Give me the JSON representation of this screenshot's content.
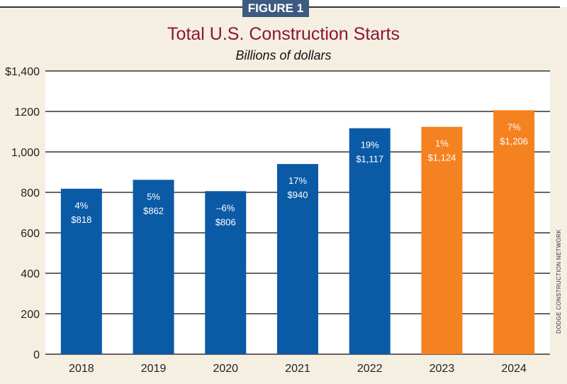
{
  "figure_label": "FIGURE 1",
  "credit": "DODGE CONSTRUCTION NETWORK",
  "colors": {
    "actual": "#0b5aa6",
    "forecast": "#f58220",
    "title": "#8b1538",
    "background": "#f5efe2"
  },
  "chart_data": {
    "type": "bar",
    "title": "Total U.S. Construction Starts",
    "subtitle": "Billions of dollars",
    "categories": [
      "2018",
      "2019",
      "2020",
      "2021",
      "2022",
      "2023",
      "2024"
    ],
    "values": [
      818,
      862,
      806,
      940,
      1117,
      1124,
      1206
    ],
    "value_labels": [
      "$818",
      "$862",
      "$806",
      "$940",
      "$1,117",
      "$1,124",
      "$1,206"
    ],
    "pct_labels": [
      "4%",
      "5%",
      "–6%",
      "17%",
      "19%",
      "1%",
      "7%"
    ],
    "bar_colors": [
      "actual",
      "actual",
      "actual",
      "actual",
      "actual",
      "forecast",
      "forecast"
    ],
    "ylim": [
      0,
      1400
    ],
    "yticks": [
      0,
      200,
      400,
      600,
      800,
      1000,
      1200,
      1400
    ],
    "ytick_labels": [
      "0",
      "200",
      "400",
      "600",
      "800",
      "1,000",
      "1200",
      "$1,400"
    ],
    "grid": true
  }
}
